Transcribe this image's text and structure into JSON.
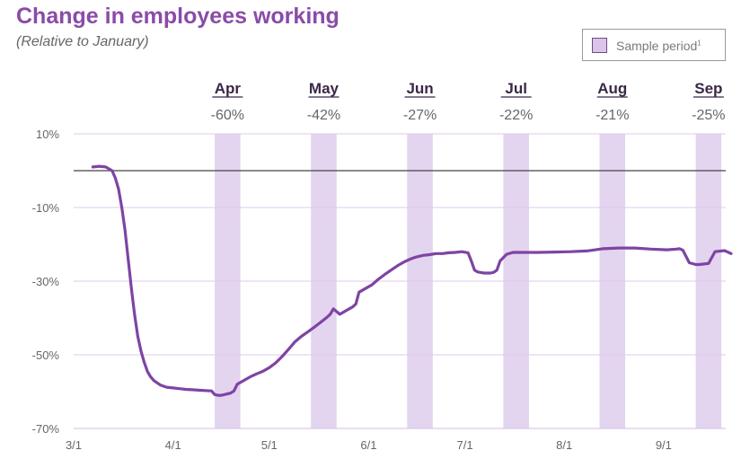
{
  "chart_data": {
    "type": "line",
    "title": "Change in employees working",
    "subtitle": "(Relative to January)",
    "xlabel": "",
    "ylabel": "",
    "ylim": [
      -70,
      10
    ],
    "y_ticks": [
      "10%",
      "-10%",
      "-30%",
      "-50%",
      "-70%"
    ],
    "y_tick_values": [
      10,
      -10,
      -30,
      -50,
      -70
    ],
    "x_ticks": [
      "3/1",
      "4/1",
      "5/1",
      "6/1",
      "7/1",
      "8/1",
      "9/1"
    ],
    "x_tick_days": [
      0,
      31,
      61,
      92,
      122,
      153,
      184
    ],
    "xlim_days": [
      0,
      205
    ],
    "reference_line": 0,
    "legend": {
      "label": "Sample period",
      "footnote": "1",
      "position": "top-right"
    },
    "sample_periods": [
      {
        "month": "Apr",
        "value": "-60%",
        "start": 44,
        "end": 52
      },
      {
        "month": "May",
        "value": "-42%",
        "start": 74,
        "end": 82
      },
      {
        "month": "Jun",
        "value": "-27%",
        "start": 104,
        "end": 112
      },
      {
        "month": "Jul",
        "value": "-22%",
        "start": 134,
        "end": 142
      },
      {
        "month": "Aug",
        "value": "-21%",
        "start": 164,
        "end": 172
      },
      {
        "month": "Sep",
        "value": "-25%",
        "start": 194,
        "end": 202
      }
    ],
    "series": [
      {
        "name": "Change in employees working",
        "color": "#7e44a3",
        "x": [
          6,
          8,
          10,
          12,
          13,
          14,
          15,
          16,
          17,
          18,
          19,
          20,
          21,
          22,
          23,
          24,
          25,
          27,
          29,
          31,
          33,
          35,
          37,
          39,
          41,
          43,
          44,
          45,
          46,
          47,
          49,
          50,
          51,
          53,
          55,
          57,
          59,
          61,
          63,
          65,
          67,
          69,
          71,
          73,
          75,
          77,
          79,
          80,
          81,
          83,
          85,
          87,
          88,
          89,
          91,
          93,
          95,
          97,
          99,
          101,
          103,
          105,
          107,
          109,
          111,
          113,
          115,
          117,
          119,
          121,
          123,
          124,
          125,
          126,
          128,
          130,
          131,
          132,
          133,
          135,
          137,
          140,
          145,
          150,
          155,
          160,
          165,
          170,
          175,
          180,
          185,
          188,
          189,
          190,
          192,
          194,
          195,
          196,
          198,
          200,
          203,
          205
        ],
        "y": [
          1,
          1.2,
          1,
          0,
          -2,
          -5,
          -10,
          -16,
          -24,
          -32,
          -39,
          -45,
          -49,
          -52,
          -54.5,
          -56,
          -57,
          -58.2,
          -58.8,
          -59,
          -59.2,
          -59.4,
          -59.5,
          -59.6,
          -59.7,
          -59.8,
          -60.8,
          -61,
          -61,
          -60.8,
          -60.4,
          -59.8,
          -58,
          -57,
          -56,
          -55.2,
          -54.5,
          -53.5,
          -52.2,
          -50.5,
          -48.5,
          -46.5,
          -45,
          -43.8,
          -42.5,
          -41.2,
          -39.8,
          -39,
          -37.5,
          -39,
          -38,
          -37,
          -36.2,
          -33,
          -32,
          -31,
          -29.5,
          -28.2,
          -27,
          -25.8,
          -24.8,
          -24,
          -23.4,
          -23,
          -22.8,
          -22.5,
          -22.5,
          -22.3,
          -22.2,
          -22,
          -22.3,
          -24.5,
          -27,
          -27.5,
          -27.8,
          -27.8,
          -27.6,
          -27,
          -24.5,
          -22.7,
          -22.2,
          -22.2,
          -22.2,
          -22.1,
          -22,
          -21.8,
          -21.2,
          -21,
          -21,
          -21.3,
          -21.5,
          -21.3,
          -21.2,
          -21.6,
          -25,
          -25.5,
          -25.5,
          -25.4,
          -25.2,
          -22,
          -21.7,
          -22.5
        ]
      }
    ]
  }
}
